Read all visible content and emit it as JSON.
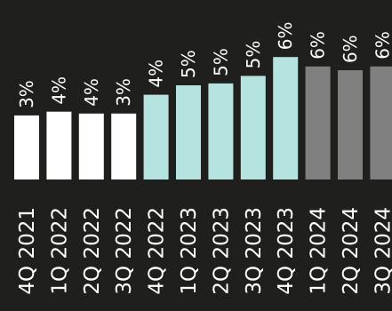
{
  "chart_data": {
    "type": "bar",
    "title": "",
    "xlabel": "",
    "ylabel": "",
    "categories": [
      "4Q 2021",
      "1Q 2022",
      "2Q 2022",
      "3Q 2022",
      "4Q 2022",
      "1Q 2023",
      "2Q 2023",
      "3Q 2023",
      "4Q 2023",
      "1Q 2024",
      "2Q 2024",
      "3Q 2024"
    ],
    "values": [
      3.4,
      3.6,
      3.5,
      3.5,
      4.5,
      5.0,
      5.1,
      5.5,
      6.5,
      6.0,
      5.8,
      6.0
    ],
    "labels": [
      "3%",
      "4%",
      "4%",
      "3%",
      "4%",
      "5%",
      "5%",
      "5%",
      "6%",
      "6%",
      "6%",
      "6%"
    ],
    "colors": [
      "#ffffff",
      "#ffffff",
      "#ffffff",
      "#ffffff",
      "#b5e3e0",
      "#b5e3e0",
      "#b5e3e0",
      "#b5e3e0",
      "#b5e3e0",
      "#808080",
      "#808080",
      "#808080"
    ],
    "background": "#1f1f1d",
    "grid": false,
    "legend": "none",
    "ylim": [
      0,
      6.5
    ]
  }
}
